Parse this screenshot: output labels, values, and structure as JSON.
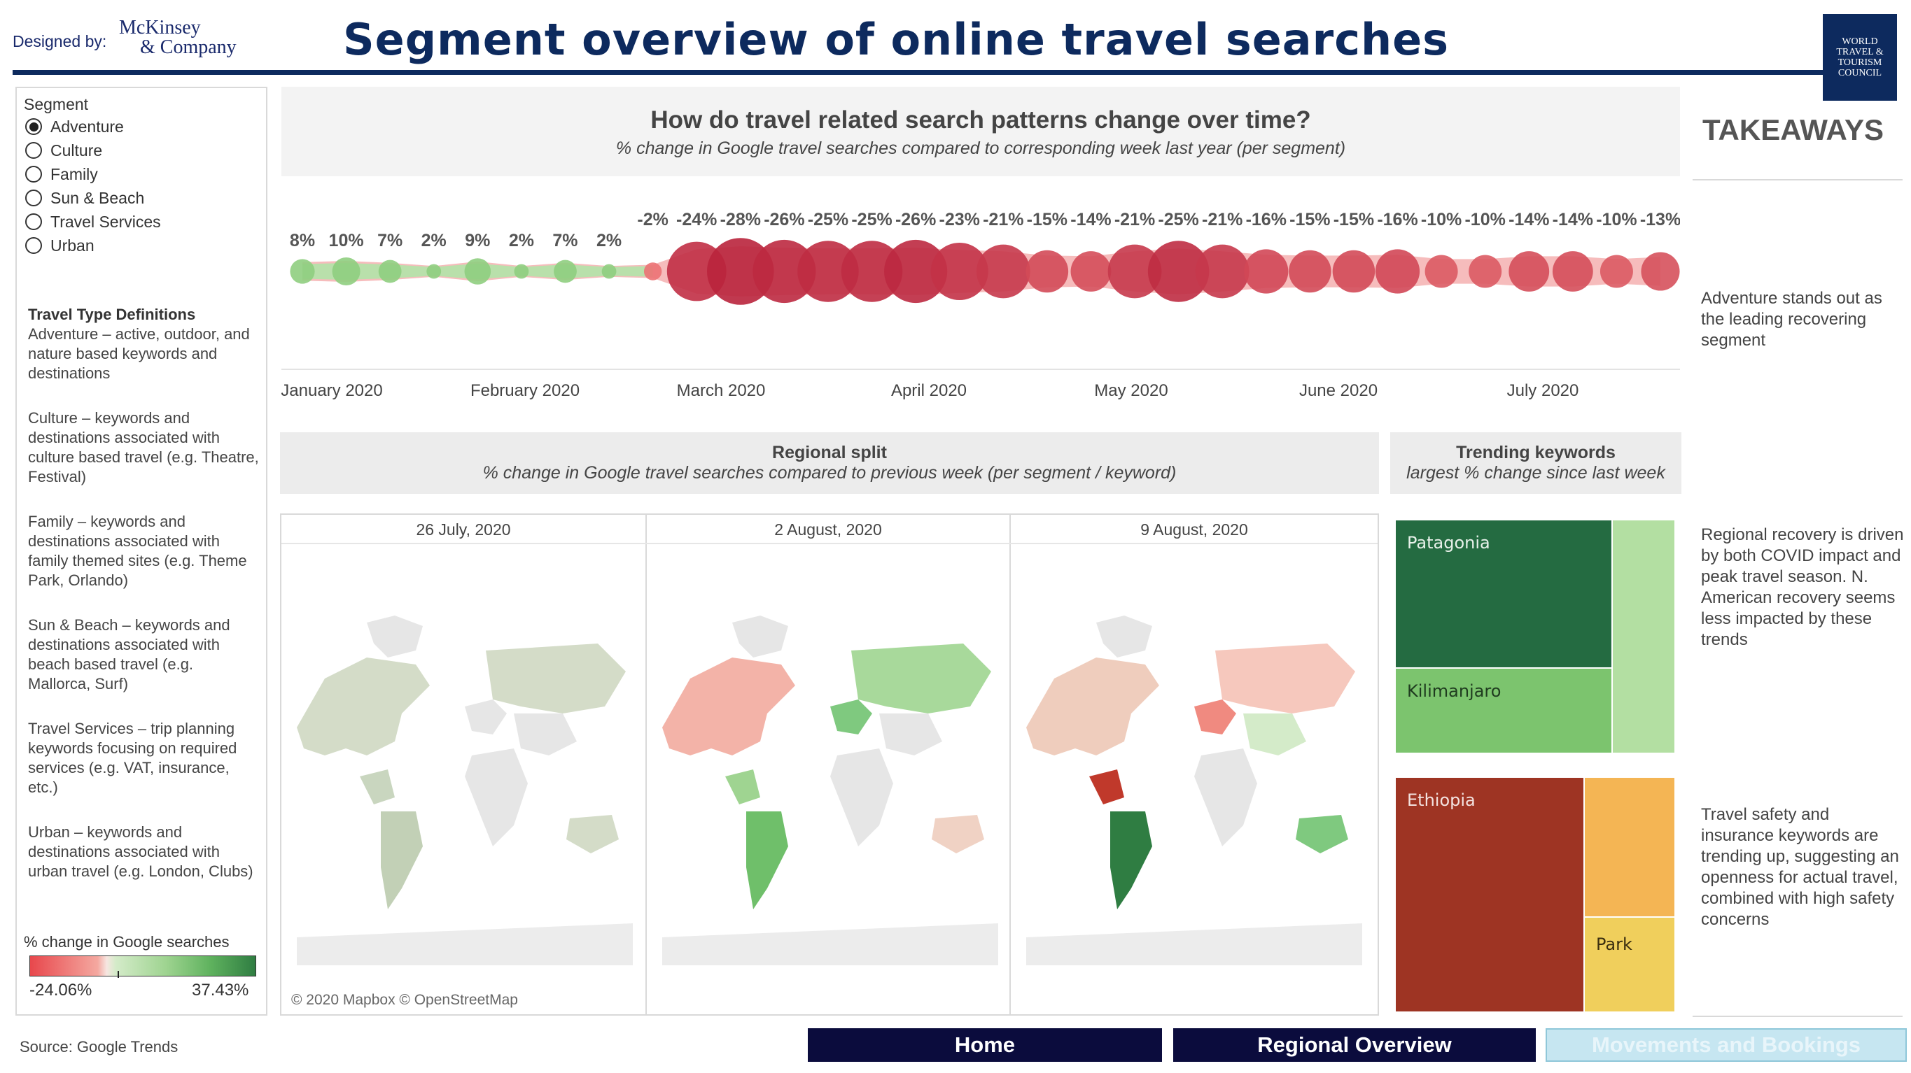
{
  "header": {
    "designed_by": "Designed by:",
    "logo_line1": "McKinsey",
    "logo_line2": "& Company",
    "title": "Segment overview of online travel searches",
    "wttc_logo": [
      "WORLD",
      "TRAVEL &",
      "TOURISM",
      "COUNCIL"
    ]
  },
  "filters": {
    "label": "Segment",
    "options": [
      "Adventure",
      "Culture",
      "Family",
      "Sun & Beach",
      "Travel Services",
      "Urban"
    ],
    "selected": "Adventure"
  },
  "definitions": {
    "heading": "Travel Type Definitions",
    "items": [
      "Adventure – active, outdoor, and nature based keywords and destinations",
      "Culture – keywords and destinations associated with culture based travel (e.g. Theatre, Festival)",
      "Family – keywords and destinations associated with family themed sites (e.g. Theme Park, Orlando)",
      "Sun & Beach – keywords and destinations associated with beach based travel (e.g. Mallorca, Surf)",
      "Travel Services – trip planning keywords focusing on required services (e.g. VAT, insurance, etc.)",
      "Urban – keywords and destinations associated with urban travel (e.g. London, Clubs)"
    ]
  },
  "legend": {
    "label": "% change in Google searches",
    "min": "-24.06%",
    "max": "37.43%"
  },
  "source": "Source: Google Trends",
  "timeline": {
    "title": "How do travel related search patterns change over time?",
    "subtitle": "% change in Google travel searches compared to corresponding week last year (per segment)",
    "months": [
      "January 2020",
      "February 2020",
      "March 2020",
      "April 2020",
      "May 2020",
      "June 2020",
      "July 2020"
    ]
  },
  "chart_data": {
    "type": "scatter",
    "series": [
      {
        "values": [
          8,
          10,
          7,
          2,
          9,
          2,
          7,
          2,
          -2,
          -24,
          -28,
          -26,
          -25,
          -25,
          -26,
          -23,
          -21,
          -15,
          -14,
          -21,
          -25,
          -21,
          -16,
          -15,
          -15,
          -16,
          -10,
          -10,
          -14,
          -14,
          -10,
          -13
        ],
        "labels": [
          "8%",
          "10%",
          "7%",
          "2%",
          "9%",
          "2%",
          "7%",
          "2%",
          "-2%",
          "-24%",
          "-28%",
          "-26%",
          "-25%",
          "-25%",
          "-26%",
          "-23%",
          "-21%",
          "-15%",
          "-14%",
          "-21%",
          "-25%",
          "-21%",
          "-16%",
          "-15%",
          "-15%",
          "-16%",
          "-10%",
          "-10%",
          "-14%",
          "-14%",
          "-10%",
          "-13%"
        ]
      }
    ],
    "x_axis_labels": [
      "January 2020",
      "February 2020",
      "March 2020",
      "April 2020",
      "May 2020",
      "June 2020",
      "July 2020"
    ],
    "colors": {
      "positive": "#7fc97f",
      "negative": "#d7263d"
    }
  },
  "regional": {
    "title": "Regional split",
    "subtitle": "% change in Google travel searches compared to previous week (per segment / keyword)",
    "dates": [
      "26 July, 2020",
      "2 August, 2020",
      "9 August, 2020"
    ],
    "credit": "© 2020 Mapbox © OpenStreetMap"
  },
  "trending": {
    "title": "Trending keywords",
    "subtitle": "largest % change since last week",
    "tiles": {
      "patagonia": "Patagonia",
      "kilimanjaro": "Kilimanjaro",
      "ethiopia": "Ethiopia",
      "park": "Park"
    }
  },
  "takeaways": {
    "title": "TAKEAWAYS",
    "items": [
      "Adventure stands out as the leading recovering segment",
      "Regional recovery is driven by both COVID impact and peak travel season. N. American recovery seems less impacted by these trends",
      "Travel safety and insurance keywords are trending up, suggesting an openness for actual travel, combined with high safety concerns"
    ]
  },
  "nav": {
    "home": "Home",
    "regional": "Regional Overview",
    "movements": "Movements and Bookings"
  }
}
